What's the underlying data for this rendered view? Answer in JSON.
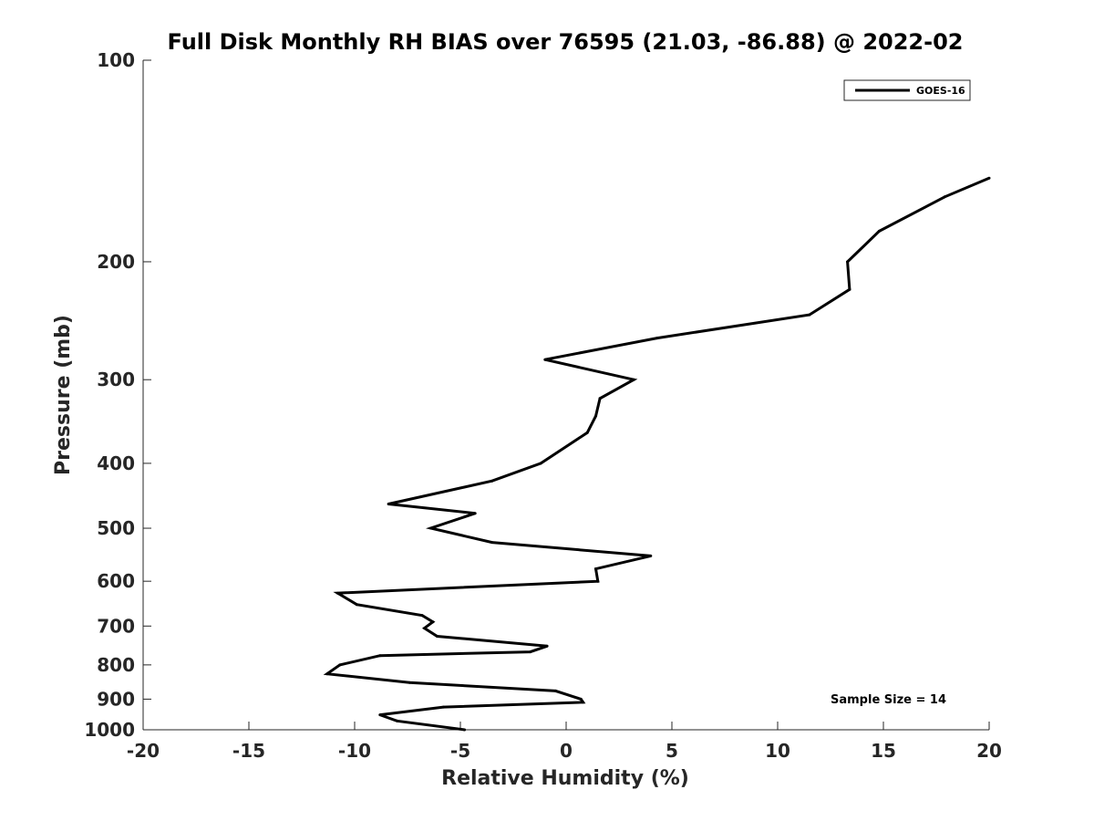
{
  "chart_data": {
    "type": "line",
    "title": "Full Disk Monthly RH BIAS over 76595 (21.03, -86.88) @ 2022-02",
    "xlabel": "Relative Humidity (%)",
    "ylabel": "Pressure (mb)",
    "xlim": [
      -20,
      20
    ],
    "ylim": [
      100,
      1000
    ],
    "yscale": "log",
    "yreversed": true,
    "grid": false,
    "legend_position": "top-right",
    "xticks": [
      "-20",
      "-15",
      "-10",
      "-5",
      "0",
      "5",
      "10",
      "15",
      "20"
    ],
    "yticks": [
      "100",
      "200",
      "300",
      "400",
      "500",
      "600",
      "700",
      "800",
      "900",
      "1000"
    ],
    "annotation": "Sample Size = 14",
    "series": [
      {
        "name": "GOES-16",
        "color": "#000000",
        "points": [
          {
            "x": 20.0,
            "y": 150
          },
          {
            "x": 17.9,
            "y": 160
          },
          {
            "x": 14.8,
            "y": 180
          },
          {
            "x": 13.3,
            "y": 200
          },
          {
            "x": 13.4,
            "y": 220
          },
          {
            "x": 11.5,
            "y": 240
          },
          {
            "x": 4.3,
            "y": 260
          },
          {
            "x": -1.0,
            "y": 280
          },
          {
            "x": 3.2,
            "y": 300
          },
          {
            "x": 1.6,
            "y": 320
          },
          {
            "x": 1.4,
            "y": 340
          },
          {
            "x": 1.0,
            "y": 360
          },
          {
            "x": -1.2,
            "y": 400
          },
          {
            "x": -3.5,
            "y": 425
          },
          {
            "x": -8.4,
            "y": 460
          },
          {
            "x": -4.3,
            "y": 475
          },
          {
            "x": -6.4,
            "y": 500
          },
          {
            "x": -3.5,
            "y": 525
          },
          {
            "x": 4.0,
            "y": 550
          },
          {
            "x": 1.4,
            "y": 575
          },
          {
            "x": 1.5,
            "y": 600
          },
          {
            "x": -10.8,
            "y": 625
          },
          {
            "x": -9.9,
            "y": 650
          },
          {
            "x": -6.8,
            "y": 675
          },
          {
            "x": -6.3,
            "y": 690
          },
          {
            "x": -6.7,
            "y": 705
          },
          {
            "x": -6.1,
            "y": 725
          },
          {
            "x": -0.9,
            "y": 750
          },
          {
            "x": -1.7,
            "y": 765
          },
          {
            "x": -8.8,
            "y": 775
          },
          {
            "x": -10.7,
            "y": 800
          },
          {
            "x": -11.3,
            "y": 825
          },
          {
            "x": -7.4,
            "y": 850
          },
          {
            "x": -0.5,
            "y": 875
          },
          {
            "x": 0.7,
            "y": 900
          },
          {
            "x": 0.8,
            "y": 910
          },
          {
            "x": -5.8,
            "y": 925
          },
          {
            "x": -8.8,
            "y": 950
          },
          {
            "x": -8.0,
            "y": 970
          },
          {
            "x": -4.8,
            "y": 1000
          }
        ]
      }
    ]
  }
}
